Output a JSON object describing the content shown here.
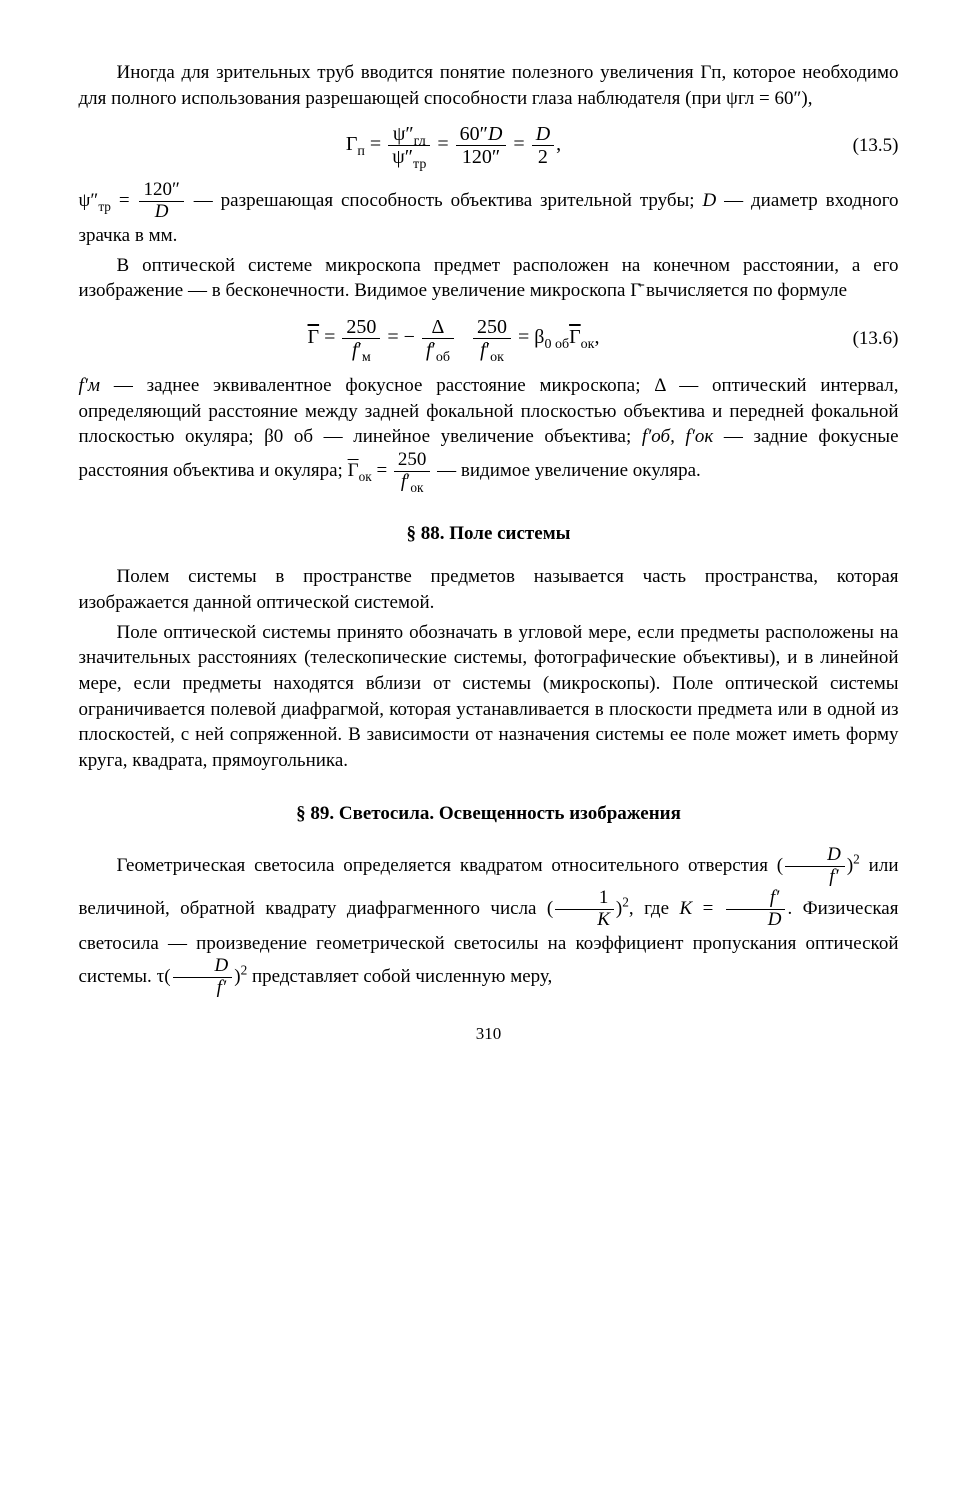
{
  "para1": "Иногда для зрительных труб вводится понятие полезного увеличения Гп, которое необходимо для полного использования разрешающей способности глаза наблюдателя (при ψгл = 60″),",
  "eq1_num": "(13.5)",
  "para2a": " — разрешающая способность объектива зрительной трубы; ",
  "para2b": "D",
  "para2c": " — диаметр входного зрачка в мм.",
  "para3": "В оптической системе микроскопа предмет расположен на конечном расстоянии, а его изображение — в бесконечности. Видимое увеличение микроскопа Г̄ вычисляется по формуле",
  "eq2_num": "(13.6)",
  "para4a": "f′м",
  "para4b": " — заднее эквивалентное фокусное расстояние микроскопа; Δ — оптический интервал, определяющий расстояние между задней фокальной плоскостью объектива и передней фокальной плоскостью окуляра; β0 об — линейное увеличение объектива; ",
  "para4c": "f′об, f′ок",
  "para4d": " — задние фокусные расстояния объектива и окуляра; ",
  "para4e": " — видимое увеличение окуляра.",
  "section88": "§ 88. Поле системы",
  "para5": "Полем системы в пространстве предметов называется часть пространства, которая изображается данной оптической системой.",
  "para6": "Поле оптической системы принято обозначать в угловой мере, если предметы расположены на значительных расстояниях (телескопические системы, фотографические объективы), и в линейной мере, если предметы находятся вблизи от системы (микроскопы). Поле оптической системы ограничивается полевой диафрагмой, которая устанавливается в плоскости предмета или в одной из плоскостей, с ней сопряженной. В зависимости от назначения системы ее поле может иметь форму круга, квадрата, прямоугольника.",
  "section89": "§ 89. Светосила. Освещенность изображения",
  "para7a": "Геометрическая светосила определяется квадратом относительного отверстия ",
  "para7b": " или величиной, обратной квадрату диафрагменного числа ",
  "para7c": ", где ",
  "para7d": ". Физическая светосила — произведение геометрической светосилы на коэффициент пропускания оптической системы. ",
  "para7e": " представляет собой численную меру,",
  "pagenum": "310"
}
